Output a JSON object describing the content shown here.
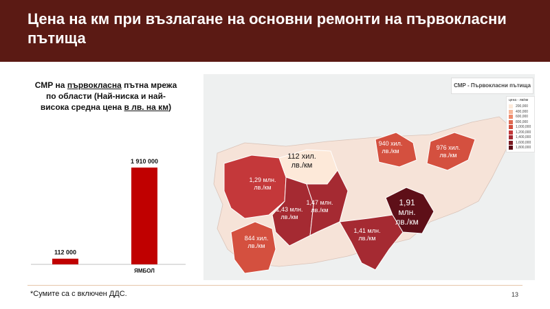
{
  "slide": {
    "title": "Цена на км при възлагане на основни ремонти на първокласни пътища",
    "footnote": "*Сумите са с включен ДДС.",
    "page_number": "13"
  },
  "bar_chart_title": {
    "part1": "СМР на ",
    "part2": "първокласна",
    "part3": " пътна мрежа по области (Най-ниска и най-висока средна цена ",
    "part4": "в лв. на км",
    "part5": ")"
  },
  "chart_data": [
    {
      "type": "bar",
      "categories": [
        "",
        "ЯМБОЛ"
      ],
      "values": [
        112000,
        1910000
      ],
      "data_labels": [
        "112 000",
        "1 910 000"
      ],
      "ylim": [
        0,
        2100000
      ],
      "grid": false,
      "colors": [
        "#c00000",
        "#c00000"
      ]
    },
    {
      "type": "choropleth",
      "title": "СМР - Първокласни пътища",
      "legend_title": "цена - лв/км",
      "legend_entries": [
        "200,000",
        "400,000",
        "600,000",
        "800,000",
        "1,000,000",
        "1,200,000",
        "1,400,000",
        "1,600,000",
        "1,800,000"
      ],
      "legend_placement": "right",
      "regions": [
        {
          "value_label": "1,29 млн. лв./км",
          "value": 1290000
        },
        {
          "value_label": "112 хил. лв./км",
          "value": 112000
        },
        {
          "value_label": "1,43 млн. лв./км",
          "value": 1430000
        },
        {
          "value_label": "1,47 млн. лв./км",
          "value": 1470000
        },
        {
          "value_label": "844 хил. лв./км",
          "value": 844000
        },
        {
          "value_label": "1,41 млн. лв./км",
          "value": 1410000
        },
        {
          "value_label": "1,91 млн. лв./км",
          "value": 1910000
        },
        {
          "value_label": "940 хил. лв./км",
          "value": 940000
        },
        {
          "value_label": "976 хил. лв./км",
          "value": 976000
        }
      ],
      "colors": [
        "#fde9d9",
        "#f7b79a",
        "#ef8a6b",
        "#e06a52",
        "#d4503f",
        "#c4383a",
        "#a52a32",
        "#7c1a22",
        "#5e0f18"
      ]
    }
  ]
}
